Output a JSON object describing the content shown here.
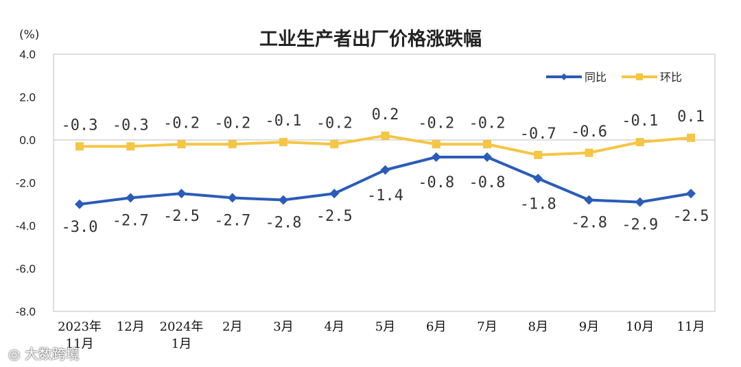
{
  "chart_data": {
    "type": "line",
    "title": "工业生产者出厂价格涨跌幅",
    "unit": "(%)",
    "categories": [
      [
        "2023年",
        "11月"
      ],
      [
        "12月"
      ],
      [
        "2024年",
        "1月"
      ],
      [
        "2月"
      ],
      [
        "3月"
      ],
      [
        "4月"
      ],
      [
        "5月"
      ],
      [
        "6月"
      ],
      [
        "7月"
      ],
      [
        "8月"
      ],
      [
        "9月"
      ],
      [
        "10月"
      ],
      [
        "11月"
      ]
    ],
    "ylim": [
      -8.0,
      4.0
    ],
    "yticks": [
      "4.0",
      "2.0",
      "0.0",
      "-2.0",
      "-4.0",
      "-6.0",
      "-8.0"
    ],
    "series": [
      {
        "name": "同比",
        "color": "#2a5cb8",
        "marker": "diamond",
        "values": [
          -3.0,
          -2.7,
          -2.5,
          -2.7,
          -2.8,
          -2.5,
          -1.4,
          -0.8,
          -0.8,
          -1.8,
          -2.8,
          -2.9,
          -2.5
        ],
        "labels": [
          "-3.0",
          "-2.7",
          "-2.5",
          "-2.7",
          "-2.8",
          "-2.5",
          "-1.4",
          "-0.8",
          "-0.8",
          "-1.8",
          "-2.8",
          "-2.9",
          "-2.5"
        ]
      },
      {
        "name": "环比",
        "color": "#f5c544",
        "marker": "square",
        "values": [
          -0.3,
          -0.3,
          -0.2,
          -0.2,
          -0.1,
          -0.2,
          0.2,
          -0.2,
          -0.2,
          -0.7,
          -0.6,
          -0.1,
          0.1
        ],
        "labels": [
          "-0.3",
          "-0.3",
          "-0.2",
          "-0.2",
          "-0.1",
          "-0.2",
          "0.2",
          "-0.2",
          "-0.2",
          "-0.7",
          "-0.6",
          "-0.1",
          "0.1"
        ]
      }
    ],
    "legend_position": "top-right",
    "grid": false
  },
  "watermark": "大数跨境",
  "watermark_icon": "weibo-icon"
}
